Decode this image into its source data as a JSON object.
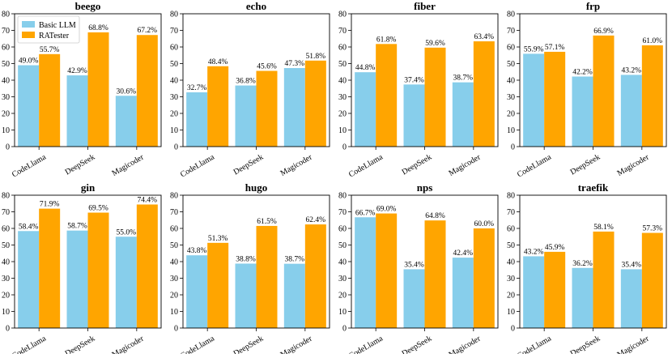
{
  "colors": {
    "basic": "#87ceeb",
    "ratester": "#ffa500"
  },
  "legend": {
    "items": [
      "Basic LLM",
      "RATester"
    ],
    "placement": "top-left of first panel"
  },
  "chart_data": [
    {
      "type": "bar",
      "title": "beego",
      "categories": [
        "CodeLlama",
        "DeepSeek",
        "Magicoder"
      ],
      "ylim": [
        0,
        80
      ],
      "yticks": [
        "0",
        "10",
        "20",
        "30",
        "40",
        "50",
        "60",
        "70",
        "80"
      ],
      "series": [
        {
          "name": "Basic LLM",
          "values": [
            49.0,
            42.9,
            30.6
          ],
          "labels": [
            "49.0%",
            "42.9%",
            "30.6%"
          ]
        },
        {
          "name": "RATester",
          "values": [
            55.7,
            68.8,
            67.2
          ],
          "labels": [
            "55.7%",
            "68.8%",
            "67.2%"
          ]
        }
      ]
    },
    {
      "type": "bar",
      "title": "echo",
      "categories": [
        "CodeLlama",
        "DeepSeek",
        "Magicoder"
      ],
      "ylim": [
        0,
        80
      ],
      "yticks": [
        "0",
        "10",
        "20",
        "30",
        "40",
        "50",
        "60",
        "70",
        "80"
      ],
      "series": [
        {
          "name": "Basic LLM",
          "values": [
            32.7,
            36.8,
            47.3
          ],
          "labels": [
            "32.7%",
            "36.8%",
            "47.3%"
          ]
        },
        {
          "name": "RATester",
          "values": [
            48.4,
            45.6,
            51.8
          ],
          "labels": [
            "48.4%",
            "45.6%",
            "51.8%"
          ]
        }
      ]
    },
    {
      "type": "bar",
      "title": "fiber",
      "categories": [
        "CodeLlama",
        "DeepSeek",
        "Magicoder"
      ],
      "ylim": [
        0,
        80
      ],
      "yticks": [
        "0",
        "10",
        "20",
        "30",
        "40",
        "50",
        "60",
        "70",
        "80"
      ],
      "series": [
        {
          "name": "Basic LLM",
          "values": [
            44.8,
            37.4,
            38.7
          ],
          "labels": [
            "44.8%",
            "37.4%",
            "38.7%"
          ]
        },
        {
          "name": "RATester",
          "values": [
            61.8,
            59.6,
            63.4
          ],
          "labels": [
            "61.8%",
            "59.6%",
            "63.4%"
          ]
        }
      ]
    },
    {
      "type": "bar",
      "title": "frp",
      "categories": [
        "CodeLlama",
        "DeepSeek",
        "Magicoder"
      ],
      "ylim": [
        0,
        80
      ],
      "yticks": [
        "0",
        "10",
        "20",
        "30",
        "40",
        "50",
        "60",
        "70",
        "80"
      ],
      "series": [
        {
          "name": "Basic LLM",
          "values": [
            55.9,
            42.2,
            43.2
          ],
          "labels": [
            "55.9%",
            "42.2%",
            "43.2%"
          ]
        },
        {
          "name": "RATester",
          "values": [
            57.1,
            66.9,
            61.0
          ],
          "labels": [
            "57.1%",
            "66.9%",
            "61.0%"
          ]
        }
      ]
    },
    {
      "type": "bar",
      "title": "gin",
      "categories": [
        "CodeLlama",
        "DeepSeek",
        "Magicoder"
      ],
      "ylim": [
        0,
        80
      ],
      "yticks": [
        "0",
        "10",
        "20",
        "30",
        "40",
        "50",
        "60",
        "70",
        "80"
      ],
      "series": [
        {
          "name": "Basic LLM",
          "values": [
            58.4,
            58.7,
            55.0
          ],
          "labels": [
            "58.4%",
            "58.7%",
            "55.0%"
          ]
        },
        {
          "name": "RATester",
          "values": [
            71.9,
            69.5,
            74.4
          ],
          "labels": [
            "71.9%",
            "69.5%",
            "74.4%"
          ]
        }
      ]
    },
    {
      "type": "bar",
      "title": "hugo",
      "categories": [
        "CodeLlama",
        "DeepSeek",
        "Magicoder"
      ],
      "ylim": [
        0,
        80
      ],
      "yticks": [
        "0",
        "10",
        "20",
        "30",
        "40",
        "50",
        "60",
        "70",
        "80"
      ],
      "series": [
        {
          "name": "Basic LLM",
          "values": [
            43.8,
            38.8,
            38.7
          ],
          "labels": [
            "43.8%",
            "38.8%",
            "38.7%"
          ]
        },
        {
          "name": "RATester",
          "values": [
            51.3,
            61.5,
            62.4
          ],
          "labels": [
            "51.3%",
            "61.5%",
            "62.4%"
          ]
        }
      ]
    },
    {
      "type": "bar",
      "title": "nps",
      "categories": [
        "CodeLlama",
        "DeepSeek",
        "Magicoder"
      ],
      "ylim": [
        0,
        80
      ],
      "yticks": [
        "0",
        "10",
        "20",
        "30",
        "40",
        "50",
        "60",
        "70",
        "80"
      ],
      "series": [
        {
          "name": "Basic LLM",
          "values": [
            66.7,
            35.4,
            42.4
          ],
          "labels": [
            "66.7%",
            "35.4%",
            "42.4%"
          ]
        },
        {
          "name": "RATester",
          "values": [
            69.0,
            64.8,
            60.0
          ],
          "labels": [
            "69.0%",
            "64.8%",
            "60.0%"
          ]
        }
      ]
    },
    {
      "type": "bar",
      "title": "traefik",
      "categories": [
        "CodeLlama",
        "DeepSeek",
        "Magicoder"
      ],
      "ylim": [
        0,
        80
      ],
      "yticks": [
        "0",
        "10",
        "20",
        "30",
        "40",
        "50",
        "60",
        "70",
        "80"
      ],
      "series": [
        {
          "name": "Basic LLM",
          "values": [
            43.2,
            36.2,
            35.4
          ],
          "labels": [
            "43.2%",
            "36.2%",
            "35.4%"
          ]
        },
        {
          "name": "RATester",
          "values": [
            45.9,
            58.1,
            57.3
          ],
          "labels": [
            "45.9%",
            "58.1%",
            "57.3%"
          ]
        }
      ]
    }
  ]
}
